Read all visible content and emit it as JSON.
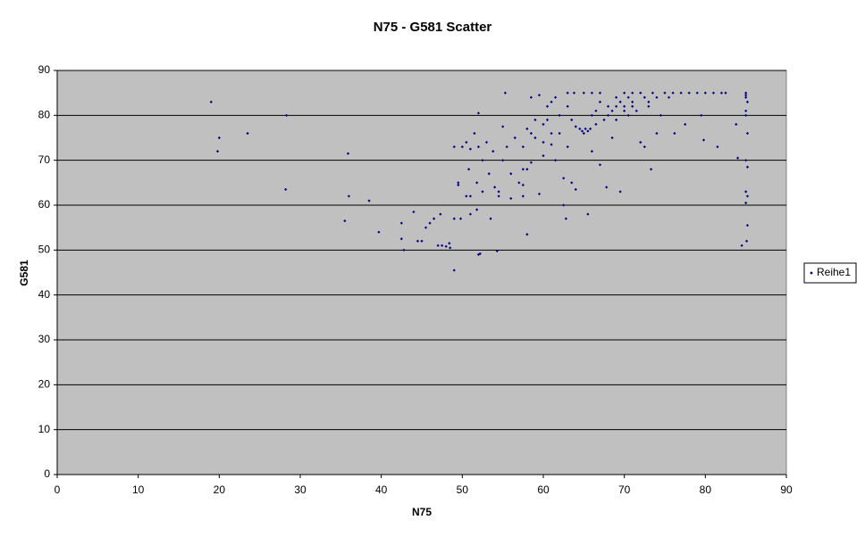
{
  "chart_data": {
    "type": "scatter",
    "title": "N75 - G581 Scatter",
    "x_label": "N75",
    "y_label": "G581",
    "x": [
      19,
      20,
      19.8,
      23.5,
      28.3,
      28.2,
      35.5,
      36,
      35.9,
      38.5,
      39.7,
      42.5,
      42.5,
      42.8,
      44,
      44.5,
      45,
      45.5,
      46,
      46.5,
      47,
      47.5,
      48,
      48.4,
      47.3,
      48.5,
      49,
      49,
      49,
      49.5,
      49.5,
      50,
      49.8,
      50.5,
      50.5,
      50.8,
      51,
      51,
      51,
      51.5,
      51.8,
      51.8,
      52,
      52.2,
      52,
      52,
      52.5,
      52.5,
      53,
      53.3,
      53.5,
      53.8,
      54,
      54.5,
      54.5,
      54.3,
      55,
      55,
      55.3,
      55.5,
      56,
      56,
      56.5,
      57,
      57.5,
      57.5,
      57.5,
      57.5,
      58,
      58,
      58.5,
      58.5,
      58,
      58.5,
      59,
      59,
      59.5,
      59.5,
      60,
      60,
      60,
      60.5,
      60.5,
      61,
      61,
      61,
      61.5,
      61.5,
      62,
      62,
      62.5,
      62.5,
      62.8,
      63,
      63,
      63,
      63.5,
      63.5,
      63.8,
      64,
      64,
      64.5,
      64.8,
      65,
      65.2,
      65.5,
      65.5,
      65.8,
      65,
      66,
      66,
      66,
      66.5,
      66.5,
      67,
      67,
      67,
      67.5,
      67.8,
      68,
      68,
      68.5,
      68.5,
      69,
      69,
      69,
      69.5,
      69.5,
      70,
      70,
      70,
      70.5,
      70.5,
      71,
      71,
      71,
      71.5,
      72,
      72,
      72.5,
      72.5,
      73,
      73,
      73.3,
      73.5,
      74,
      74,
      74.5,
      75,
      75.5,
      76,
      76.2,
      77,
      77.5,
      78,
      79,
      79.5,
      79.8,
      80,
      81,
      81.5,
      82,
      82.5,
      83.8,
      84,
      84.5,
      85,
      85,
      85,
      85.2,
      85,
      85,
      85.2,
      85,
      85.2,
      85,
      85.2,
      85,
      85.2,
      85.1
    ],
    "series": [
      {
        "name": "Reihe1",
        "color": "#000080",
        "values": [
          83,
          75,
          72,
          76,
          80,
          63.5,
          56.5,
          62,
          71.5,
          61,
          54,
          56,
          52.5,
          50,
          58.5,
          52,
          52,
          55,
          56,
          57,
          51,
          51,
          50.8,
          51.5,
          58,
          50.5,
          45.5,
          57,
          73,
          64.5,
          65,
          73,
          57,
          62,
          74,
          68,
          58,
          72.5,
          62,
          76,
          59,
          65,
          49,
          49.2,
          80.5,
          73,
          70,
          63,
          74,
          67,
          57,
          72,
          64,
          63,
          62,
          49.8,
          77.5,
          70,
          85,
          73,
          67,
          61.5,
          75,
          65,
          68,
          64.5,
          62,
          73,
          53.5,
          77,
          76,
          84,
          68,
          69.5,
          75,
          79,
          62.5,
          84.5,
          74,
          78,
          71,
          79,
          82,
          76,
          73.5,
          83,
          84,
          70,
          80,
          76,
          66,
          60,
          57,
          85,
          82,
          73,
          65,
          79,
          85,
          63.5,
          77.5,
          77,
          76.5,
          76,
          77,
          76.5,
          58,
          77,
          85,
          85,
          80,
          72,
          81,
          78,
          69,
          83,
          85,
          79,
          64,
          80,
          82,
          81,
          75,
          82,
          79,
          84,
          83,
          63,
          81,
          82,
          85,
          80,
          84,
          82,
          83,
          85,
          81,
          85,
          74,
          84,
          73,
          83,
          82,
          68,
          85,
          84,
          76,
          80,
          85,
          84,
          85,
          76,
          85,
          78,
          85,
          85,
          80,
          74.5,
          85,
          85,
          73,
          85,
          85,
          78,
          70.5,
          51,
          85,
          84.5,
          84,
          83,
          81,
          80,
          76,
          70,
          68.5,
          63,
          62,
          60.5,
          55.5,
          52
        ]
      }
    ],
    "xlim": [
      0,
      90
    ],
    "xticks": [
      0,
      10,
      20,
      30,
      40,
      50,
      60,
      70,
      80,
      90
    ],
    "ylim": [
      0,
      90
    ],
    "yticks": [
      0,
      10,
      20,
      30,
      40,
      50,
      60,
      70,
      80,
      90
    ],
    "grid": true,
    "legend": "right"
  }
}
